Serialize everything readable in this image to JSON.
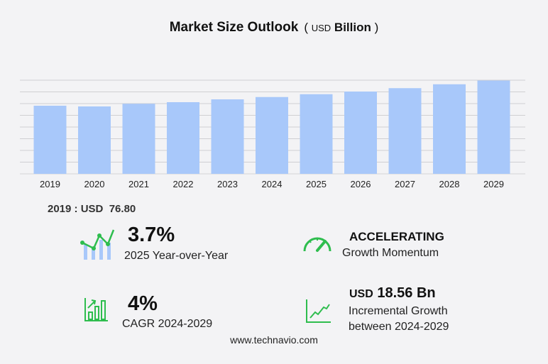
{
  "title": {
    "main": "Market Size Outlook",
    "open": "(",
    "unit_small": "USD",
    "unit": "Billion",
    "close": ")"
  },
  "chart_data": {
    "type": "bar",
    "title": "Market Size Outlook (USD Billion)",
    "categories": [
      "2019",
      "2020",
      "2021",
      "2022",
      "2023",
      "2024",
      "2025",
      "2026",
      "2027",
      "2028",
      "2029"
    ],
    "values": [
      76.8,
      76.0,
      79.0,
      80.8,
      84.0,
      86.6,
      89.8,
      92.8,
      96.6,
      101.0,
      105.2
    ],
    "ylim": [
      0,
      105.6
    ],
    "grid": true,
    "bar_color": "#a8c8fa",
    "xlabel": "",
    "ylabel": ""
  },
  "base_value": {
    "year": "2019",
    "sep": " : USD",
    "value": "76.80"
  },
  "stats": {
    "yoy": {
      "value": "3.7%",
      "label": "2025 Year-over-Year",
      "icon": "growth-chart-icon"
    },
    "momentum": {
      "value": "ACCELERATING",
      "label": "Growth Momentum",
      "icon": "speedometer-icon"
    },
    "cagr": {
      "value": "4%",
      "label": "CAGR 2024-2029",
      "icon": "bar-chart-arrow-icon"
    },
    "incremental": {
      "prefix": "USD",
      "value": "18.56 Bn",
      "label1": "Incremental Growth",
      "label2": "between 2024-2029",
      "icon": "line-chart-icon"
    }
  },
  "accent": "#2ebd4e",
  "footer": "www.technavio.com"
}
